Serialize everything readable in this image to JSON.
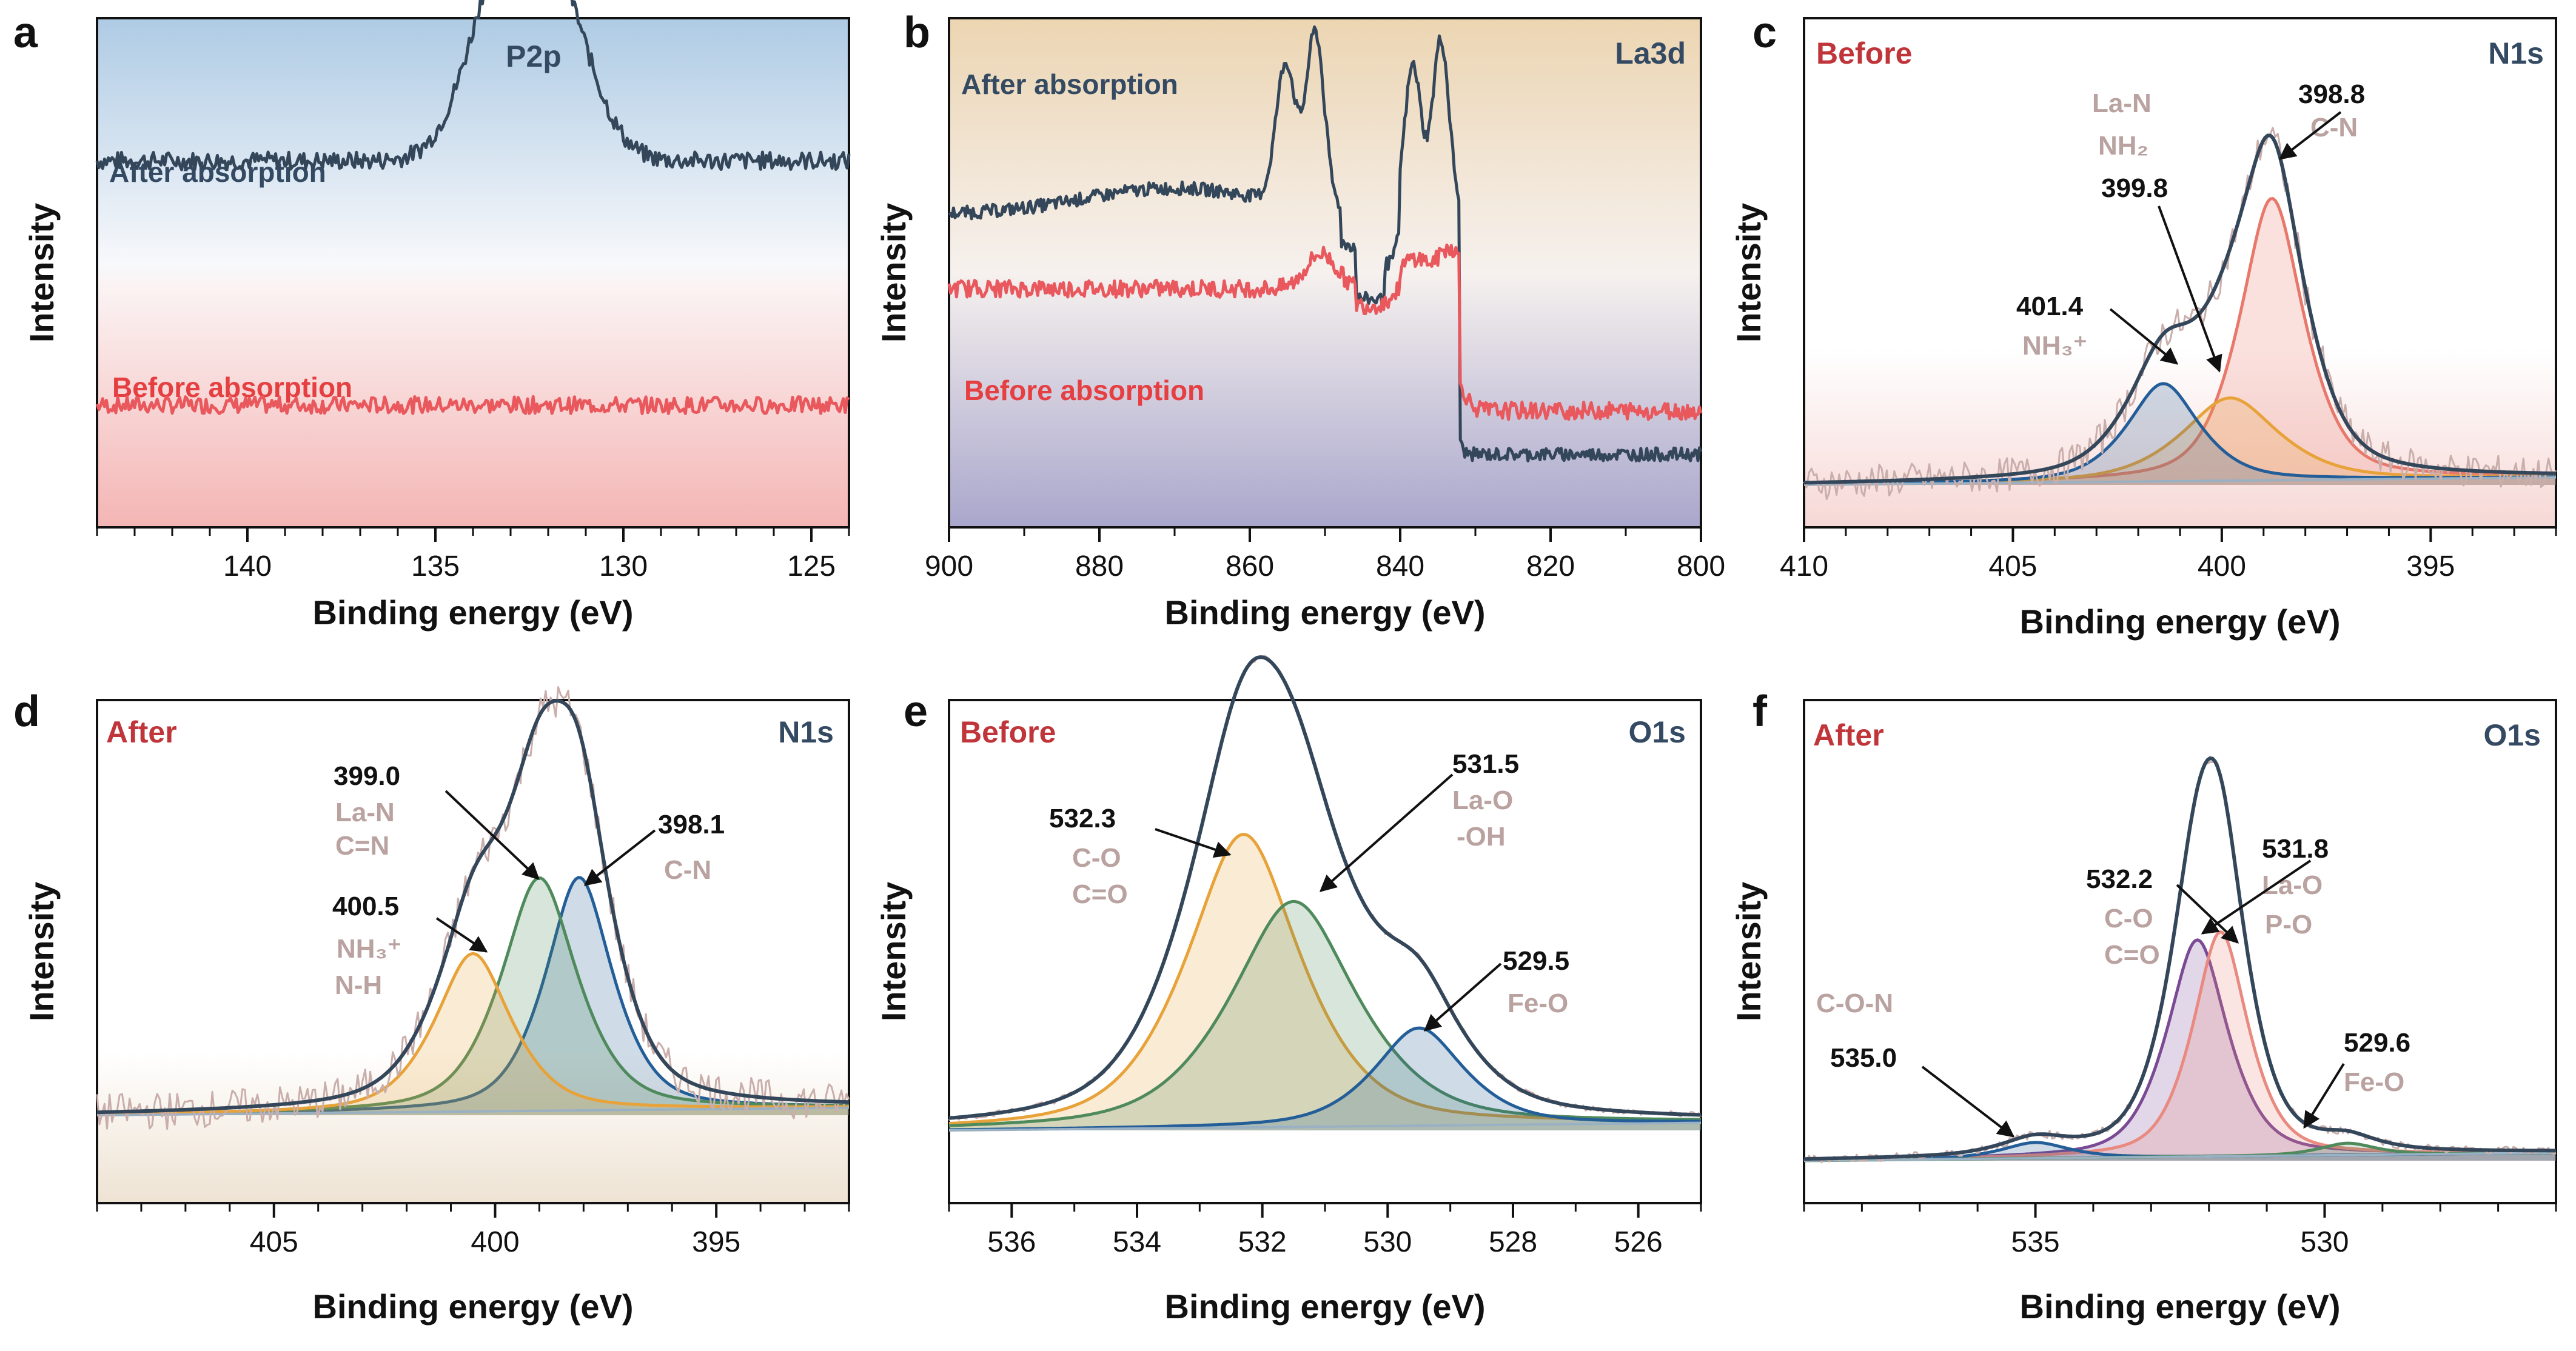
{
  "figure": {
    "x_axis_label": "Binding energy (eV)",
    "y_axis_label": "Intensity"
  },
  "colors": {
    "dark": "#34475a",
    "red": "#e9585d",
    "salmon": "#e8786b",
    "orange": "#e8a23a",
    "blue": "#245e98",
    "green": "#4f8a5c",
    "purple": "#7b4a95",
    "pink": "#e98a80",
    "gray": "#9ab0c3",
    "raw": "#c9aeab",
    "before_text": "#c0353a",
    "after_text": "#c0353a",
    "core_text": "#344a63",
    "chem_text": "#b9a2a0"
  },
  "chart_data": [
    {
      "panel": "a",
      "type": "line",
      "title": "P2p",
      "xlabel": "Binding energy (eV)",
      "ylabel": "Intensity",
      "xlim": [
        144,
        124
      ],
      "xticks": [
        140,
        135,
        130,
        125
      ],
      "series": [
        {
          "name": "After absorption",
          "color": "dark",
          "peaks": [
            [
              133.3,
              1.0,
              1.1
            ],
            [
              131.8,
              0.6,
              0.9
            ]
          ],
          "baseline": 0.62
        },
        {
          "name": "Before absorption",
          "color": "red",
          "peaks": [],
          "baseline": 0.2
        }
      ]
    },
    {
      "panel": "b",
      "type": "line",
      "title": "La3d",
      "xlabel": "Binding energy (eV)",
      "ylabel": "Intensity",
      "xlim": [
        900,
        800
      ],
      "xticks": [
        900,
        880,
        860,
        840,
        820,
        800
      ],
      "series": [
        {
          "name": "After absorption",
          "color": "dark",
          "peaks": [
            [
              855.2,
              1.0
            ],
            [
              851.3,
              1.0
            ],
            [
              838.3,
              1.0
            ],
            [
              834.6,
              1.0
            ]
          ]
        },
        {
          "name": "Before absorption",
          "color": "red",
          "peaks": [
            [
              850.5,
              1.0
            ],
            [
              833.5,
              1.0
            ]
          ]
        }
      ]
    },
    {
      "panel": "c",
      "type": "line",
      "state": "Before",
      "title": "N1s",
      "xlabel": "Binding energy (eV)",
      "ylabel": "Intensity",
      "xlim": [
        410,
        392
      ],
      "xticks": [
        410,
        405,
        400,
        395
      ],
      "components": [
        {
          "center": 398.8,
          "label": "398.8",
          "species": [
            "C-N"
          ],
          "color": "salmon",
          "amp": 0.75
        },
        {
          "center": 399.8,
          "label": "399.8",
          "species": [
            "La-N",
            "NH₂"
          ],
          "color": "orange",
          "amp": 0.22
        },
        {
          "center": 401.4,
          "label": "401.4",
          "species": [
            "NH₃⁺"
          ],
          "color": "blue",
          "amp": 0.26
        }
      ]
    },
    {
      "panel": "d",
      "type": "line",
      "state": "After",
      "title": "N1s",
      "xlabel": "Binding energy (eV)",
      "ylabel": "Intensity",
      "xlim": [
        409,
        392
      ],
      "xticks": [
        405,
        400,
        395
      ],
      "components": [
        {
          "center": 398.1,
          "label": "398.1",
          "species": [
            "C-N"
          ],
          "color": "blue",
          "amp": 0.62
        },
        {
          "center": 399.0,
          "label": "399.0",
          "species": [
            "La-N",
            "C=N"
          ],
          "color": "green",
          "amp": 0.62
        },
        {
          "center": 400.5,
          "label": "400.5",
          "species": [
            "NH₃⁺",
            "N-H"
          ],
          "color": "orange",
          "amp": 0.42
        }
      ]
    },
    {
      "panel": "e",
      "type": "line",
      "state": "Before",
      "title": "O1s",
      "xlabel": "Binding energy (eV)",
      "ylabel": "Intensity",
      "xlim": [
        537,
        525
      ],
      "xticks": [
        536,
        534,
        532,
        530,
        528,
        526
      ],
      "components": [
        {
          "center": 532.3,
          "label": "532.3",
          "species": [
            "C-O",
            "C=O"
          ],
          "color": "orange",
          "amp": 0.78
        },
        {
          "center": 531.5,
          "label": "531.5",
          "species": [
            "La-O",
            "-OH"
          ],
          "color": "green",
          "amp": 0.6
        },
        {
          "center": 529.5,
          "label": "529.5",
          "species": [
            "Fe-O"
          ],
          "color": "blue",
          "amp": 0.26
        }
      ]
    },
    {
      "panel": "f",
      "type": "line",
      "state": "After",
      "title": "O1s",
      "xlabel": "Binding energy (eV)",
      "ylabel": "Intensity",
      "xlim": [
        539,
        526
      ],
      "xticks": [
        535,
        530
      ],
      "components": [
        {
          "center": 532.2,
          "label": "532.2",
          "species": [
            "C-O",
            "C=O"
          ],
          "color": "purple",
          "amp": 0.55
        },
        {
          "center": 531.8,
          "label": "531.8",
          "species": [
            "La-O",
            "P-O"
          ],
          "color": "pink",
          "amp": 0.57
        },
        {
          "center": 535.0,
          "label": "535.0",
          "species": [
            "C-O-N"
          ],
          "color": "blue",
          "amp": 0.04
        },
        {
          "center": 529.6,
          "label": "529.6",
          "species": [
            "Fe-O"
          ],
          "color": "green",
          "amp": 0.03
        }
      ]
    }
  ]
}
